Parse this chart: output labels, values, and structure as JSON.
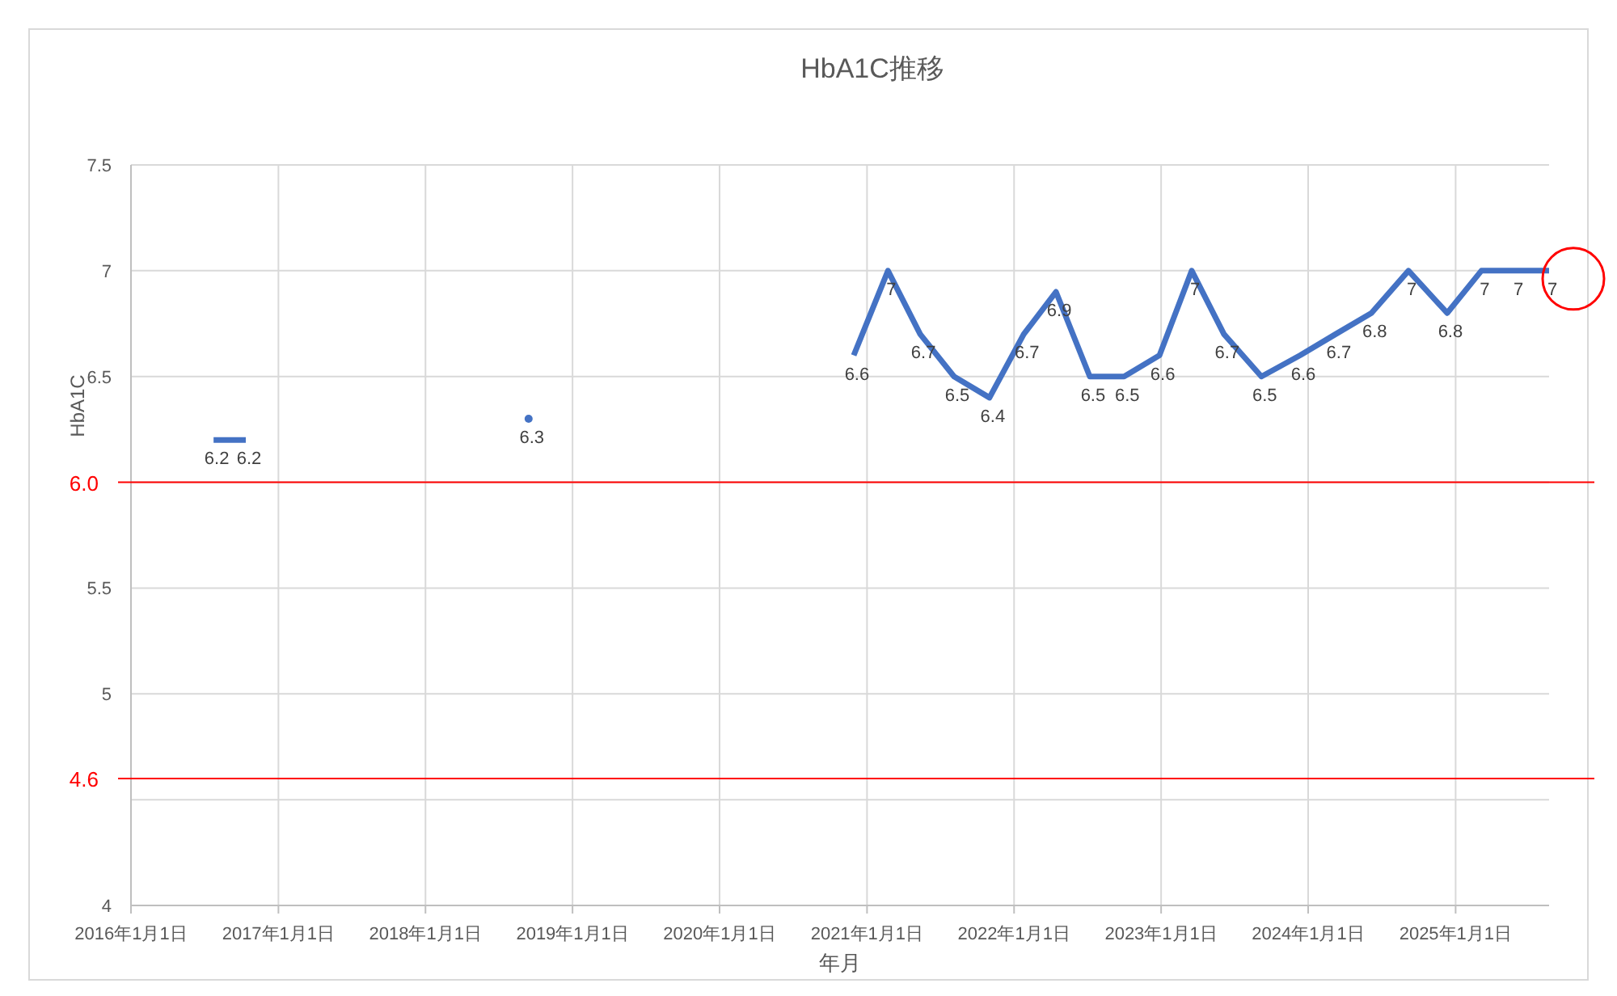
{
  "chart_data": {
    "type": "line",
    "title": "HbA1C推移",
    "xlabel": "年月",
    "ylabel": "HbA1C",
    "xlim": [
      "2016-01-01",
      "2025-08-21"
    ],
    "xticks": [
      {
        "value": "2016-01-01",
        "label": "2016年1月1日"
      },
      {
        "value": "2017-01-01",
        "label": "2017年1月1日"
      },
      {
        "value": "2018-01-01",
        "label": "2018年1月1日"
      },
      {
        "value": "2019-01-01",
        "label": "2019年1月1日"
      },
      {
        "value": "2020-01-01",
        "label": "2020年1月1日"
      },
      {
        "value": "2021-01-01",
        "label": "2021年1月1日"
      },
      {
        "value": "2022-01-01",
        "label": "2022年1月1日"
      },
      {
        "value": "2023-01-01",
        "label": "2023年1月1日"
      },
      {
        "value": "2024-01-01",
        "label": "2024年1月1日"
      },
      {
        "value": "2025-01-01",
        "label": "2025年1月1日"
      }
    ],
    "ylim": [
      4,
      7.5
    ],
    "yticks": [
      4,
      {
        "value": 4.5,
        "label": null
      },
      5,
      5.5,
      {
        "value": 6,
        "label": null
      },
      6.5,
      7,
      7.5
    ],
    "grid": true,
    "data_labels": true,
    "marker": "none",
    "line_style": "solid",
    "series": [
      {
        "color": "#4472c4",
        "x": [
          "2016-07-24",
          "2016-10-12"
        ],
        "values": [
          6.2,
          6.2
        ]
      },
      {
        "color": "#4472c4",
        "marker": "circle",
        "x": [
          "2018-09-14"
        ],
        "values": [
          6.3
        ]
      },
      {
        "color": "#4472c4",
        "x": [
          "2020-11-29",
          "2021-02-22",
          "2021-05-13",
          "2021-08-05",
          "2021-11-01",
          "2022-01-25",
          "2022-04-15",
          "2022-07-08",
          "2022-10-01",
          "2022-12-28",
          "2023-03-18",
          "2023-06-06",
          "2023-09-07",
          "2023-12-12",
          "2024-03-09",
          "2024-06-06",
          "2024-09-06",
          "2024-12-11",
          "2025-03-06",
          "2025-05-29",
          "2025-08-21"
        ],
        "values": [
          6.6,
          7,
          6.7,
          6.5,
          6.4,
          6.7,
          6.9,
          6.5,
          6.5,
          6.6,
          7,
          6.7,
          6.5,
          6.6,
          6.7,
          6.8,
          7,
          6.8,
          7,
          7,
          7
        ]
      }
    ],
    "ref_lines": [
      {
        "axis": "y",
        "value": 6.0,
        "label": "6.0",
        "color": "#ff0000"
      },
      {
        "axis": "y",
        "value": 4.6,
        "label": "4.6",
        "color": "#ff0000"
      }
    ]
  }
}
